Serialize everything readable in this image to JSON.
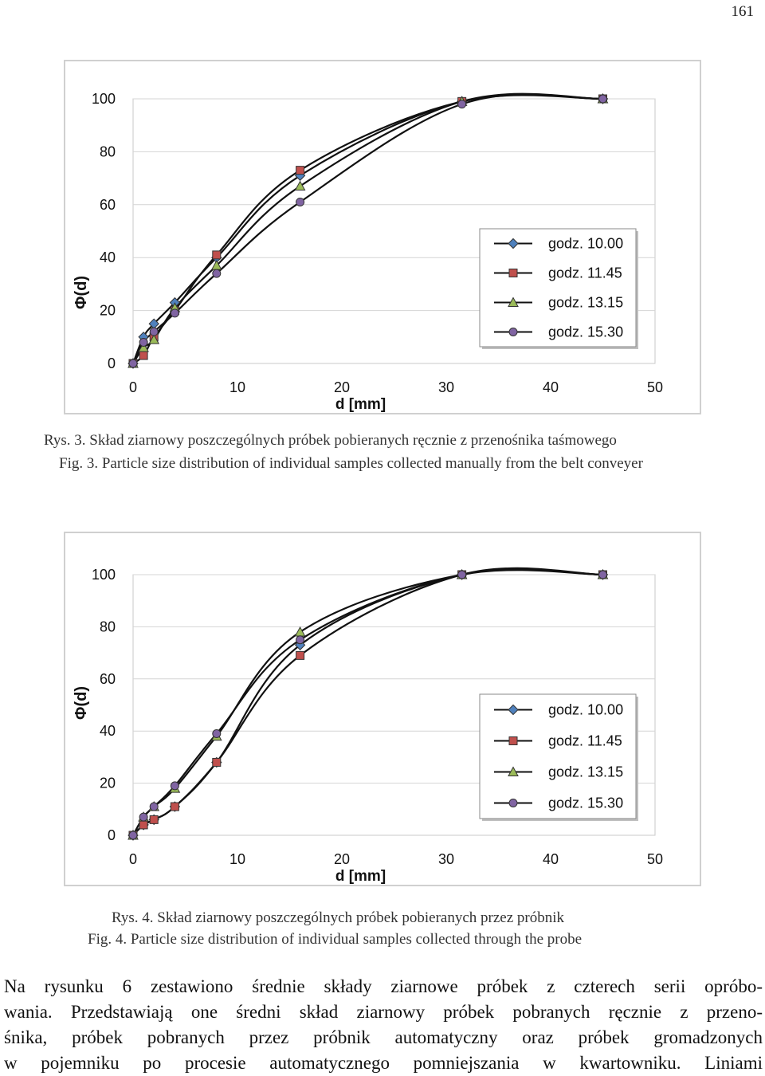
{
  "page_number": "161",
  "figures": [
    {
      "caption_pl": "Rys. 3. Skład ziarnowy poszczególnych próbek pobieranych ręcznie z przenośnika taśmowego",
      "caption_en": "Fig. 3. Particle size distribution of individual samples collected manually from the belt conveyer"
    },
    {
      "caption_pl": "Rys. 4. Skład ziarnowy poszczególnych próbek pobieranych przez próbnik",
      "caption_en": "Fig. 4. Particle size distribution of individual samples collected through the probe"
    }
  ],
  "body_text_lines": [
    "Na rysunku 6 zestawiono średnie składy ziarnowe próbek z czterech serii opróbo-",
    "wania. Przedstawiają one średni skład ziarnowy próbek pobranych ręcznie z przeno-",
    "śnika, próbek pobranych przez próbnik automatyczny oraz próbek gromadzonych",
    "w pojemniku po procesie automatycznego pomniejszania w kwartowniku. Liniami"
  ],
  "chart_data": [
    {
      "type": "line",
      "title": "",
      "xlabel": "d [mm]",
      "ylabel": "Φ(d)",
      "xlim": [
        0,
        50
      ],
      "ylim": [
        0,
        100
      ],
      "xticks": [
        0,
        10,
        20,
        30,
        40,
        50
      ],
      "yticks": [
        0,
        20,
        40,
        60,
        80,
        100
      ],
      "grid": "horizontal",
      "legend_position": "right",
      "x": [
        0,
        1,
        2,
        4,
        8,
        16,
        31.5,
        45
      ],
      "series": [
        {
          "name": "godz. 10.00",
          "marker": "diamond",
          "color": "#4f81bd",
          "values": [
            0,
            10,
            15,
            23,
            40,
            71,
            99,
            100
          ]
        },
        {
          "name": "godz. 11.45",
          "marker": "square",
          "color": "#c0504d",
          "values": [
            0,
            3,
            10,
            20,
            41,
            73,
            99,
            100
          ]
        },
        {
          "name": "godz. 13.15",
          "marker": "triangle",
          "color": "#9bbb59",
          "values": [
            0,
            6,
            9,
            21,
            37,
            67,
            99,
            100
          ]
        },
        {
          "name": "godz. 15.30",
          "marker": "circle",
          "color": "#8064a2",
          "values": [
            0,
            8,
            12,
            19,
            34,
            61,
            98,
            100
          ]
        }
      ]
    },
    {
      "type": "line",
      "title": "",
      "xlabel": "d [mm]",
      "ylabel": "Φ(d)",
      "xlim": [
        0,
        50
      ],
      "ylim": [
        0,
        100
      ],
      "xticks": [
        0,
        10,
        20,
        30,
        40,
        50
      ],
      "yticks": [
        0,
        20,
        40,
        60,
        80,
        100
      ],
      "grid": "horizontal",
      "legend_position": "right",
      "x": [
        0,
        1,
        2,
        4,
        8,
        16,
        31.5,
        45
      ],
      "series": [
        {
          "name": "godz. 10.00",
          "marker": "diamond",
          "color": "#4f81bd",
          "values": [
            0,
            4,
            6,
            11,
            28,
            73,
            100,
            100
          ]
        },
        {
          "name": "godz. 11.45",
          "marker": "square",
          "color": "#c0504d",
          "values": [
            0,
            4,
            6,
            11,
            28,
            69,
            100,
            100
          ]
        },
        {
          "name": "godz. 13.15",
          "marker": "triangle",
          "color": "#9bbb59",
          "values": [
            0,
            7,
            11,
            18,
            38,
            78,
            100,
            100
          ]
        },
        {
          "name": "godz. 15.30",
          "marker": "circle",
          "color": "#8064a2",
          "values": [
            0,
            7,
            11,
            19,
            39,
            75,
            100,
            100
          ]
        }
      ]
    }
  ]
}
